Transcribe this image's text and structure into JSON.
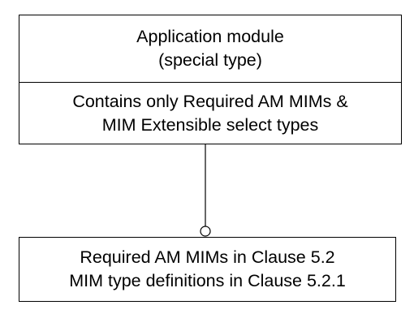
{
  "application_module": {
    "title_line1": "Application module",
    "title_line2": "(special type)",
    "body_line1": "Contains only Required AM MIMs &",
    "body_line2": "MIM Extensible select types"
  },
  "reference": {
    "line1": "Required AM MIMs in Clause 5.2",
    "line2": "MIM type definitions in Clause 5.2.1"
  },
  "connector": {
    "end_marker": "open-circle"
  }
}
